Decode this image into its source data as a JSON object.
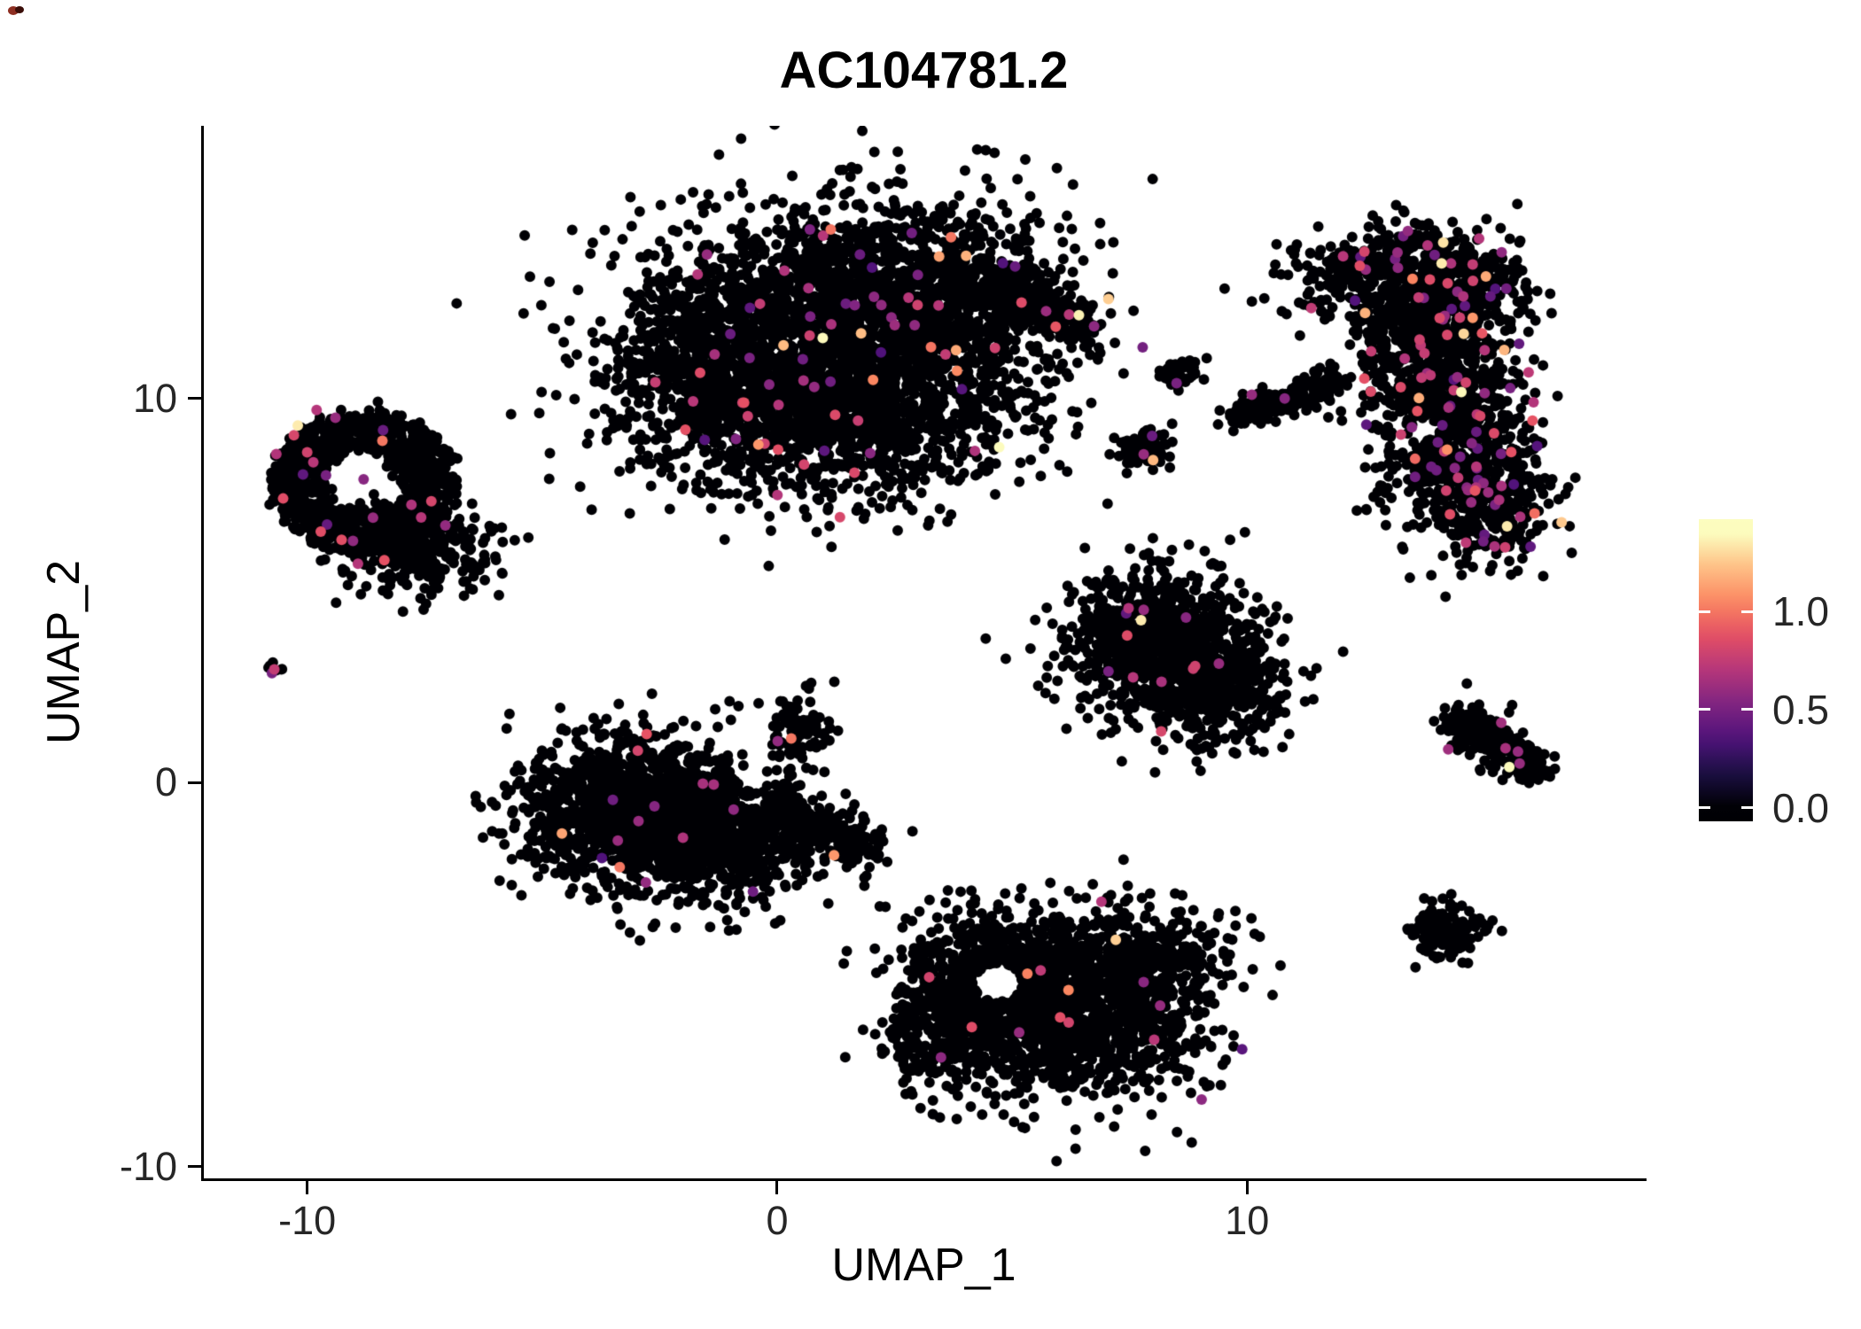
{
  "chart_data": {
    "type": "scatter",
    "title": "AC104781.2",
    "xlabel": "UMAP_1",
    "ylabel": "UMAP_2",
    "xlim": [
      -12.2,
      18.5
    ],
    "ylim": [
      -10.3,
      17.1
    ],
    "x_ticks": [
      -10,
      0,
      10
    ],
    "y_ticks": [
      10,
      0,
      -10
    ],
    "grid": false,
    "legend_position": "right",
    "point_radius_px": 6,
    "seed": 1234,
    "colorbar": {
      "tick_labels": [
        "1.0",
        "0.5",
        "0.0"
      ],
      "tick_values": [
        1.0,
        0.5,
        0.0
      ],
      "domain": [
        0,
        1.4
      ],
      "colormap": "magma",
      "colormap_stops": [
        [
          0.0,
          "#000004"
        ],
        [
          0.13,
          "#1c1044"
        ],
        [
          0.25,
          "#4f127b"
        ],
        [
          0.38,
          "#812581"
        ],
        [
          0.5,
          "#b5367a"
        ],
        [
          0.63,
          "#e55064"
        ],
        [
          0.75,
          "#fb8761"
        ],
        [
          0.88,
          "#fec287"
        ],
        [
          1.0,
          "#fcfdbf"
        ]
      ]
    },
    "clusters": [
      {
        "name": "top-center-lobe-a",
        "type": "gauss",
        "cx": 0.6,
        "cy": 11.6,
        "sx": 2.0,
        "sy": 1.7,
        "n": 1600,
        "high_frac": 0.022
      },
      {
        "name": "top-center-lobe-b",
        "type": "gauss",
        "cx": 3.0,
        "cy": 12.6,
        "sx": 1.6,
        "sy": 1.3,
        "n": 1100,
        "high_frac": 0.022
      },
      {
        "name": "top-center-lobe-c",
        "type": "gauss",
        "cx": 1.6,
        "cy": 9.6,
        "sx": 1.9,
        "sy": 1.1,
        "n": 900,
        "high_frac": 0.018
      },
      {
        "name": "top-center-lobe-d",
        "type": "gauss",
        "cx": -1.3,
        "cy": 10.8,
        "sx": 1.0,
        "sy": 1.4,
        "n": 520,
        "high_frac": 0.018
      },
      {
        "name": "top-center-tail",
        "type": "line",
        "x1": 4.0,
        "y1": 13.1,
        "x2": 6.7,
        "y2": 11.9,
        "w": 0.28,
        "n": 260,
        "high_frac": 0.02
      },
      {
        "name": "left-ring",
        "type": "ring",
        "cx": -8.8,
        "cy": 7.8,
        "r_inner": 0.85,
        "r_outer": 2.0,
        "n": 1000,
        "high_frac": 0.012
      },
      {
        "name": "left-ring-lobe",
        "type": "gauss",
        "cx": -7.7,
        "cy": 6.1,
        "sx": 0.85,
        "sy": 0.6,
        "n": 320,
        "high_frac": 0.006
      },
      {
        "name": "far-left-tiny",
        "type": "gauss",
        "cx": -10.7,
        "cy": 2.9,
        "sx": 0.12,
        "sy": 0.1,
        "n": 7,
        "high_frac": 0
      },
      {
        "name": "center-left-lobe-a",
        "type": "gauss",
        "cx": -3.3,
        "cy": -0.6,
        "sx": 1.2,
        "sy": 1.0,
        "n": 1000,
        "high_frac": 0.006
      },
      {
        "name": "center-left-lobe-b",
        "type": "gauss",
        "cx": -1.3,
        "cy": -1.3,
        "sx": 1.2,
        "sy": 0.9,
        "n": 800,
        "high_frac": 0.006
      },
      {
        "name": "center-left-tail",
        "type": "line",
        "x1": 0.0,
        "y1": -0.9,
        "x2": 1.9,
        "y2": -1.8,
        "w": 0.35,
        "n": 220,
        "high_frac": 0.005
      },
      {
        "name": "center-left-spur",
        "type": "gauss",
        "cx": 0.45,
        "cy": 1.4,
        "sx": 0.35,
        "sy": 0.45,
        "n": 90,
        "high_frac": 0.01
      },
      {
        "name": "bottom-center-lobe-a",
        "type": "gauss",
        "cx": 4.7,
        "cy": -5.0,
        "sx": 1.0,
        "sy": 0.85,
        "n": 650,
        "high_frac": 0.006
      },
      {
        "name": "bottom-center-lobe-b",
        "type": "gauss",
        "cx": 6.5,
        "cy": -6.4,
        "sx": 1.4,
        "sy": 0.95,
        "n": 850,
        "high_frac": 0.007
      },
      {
        "name": "bottom-center-lobe-c",
        "type": "gauss",
        "cx": 7.5,
        "cy": -4.6,
        "sx": 1.0,
        "sy": 0.75,
        "n": 500,
        "high_frac": 0.008
      },
      {
        "name": "bottom-center-lobe-d",
        "type": "gauss",
        "cx": 3.6,
        "cy": -6.5,
        "sx": 0.7,
        "sy": 0.8,
        "n": 300,
        "high_frac": 0.005
      },
      {
        "name": "mid-right-triangle-a",
        "type": "gauss",
        "cx": 8.2,
        "cy": 3.6,
        "sx": 1.05,
        "sy": 0.95,
        "n": 900,
        "high_frac": 0.008
      },
      {
        "name": "mid-right-triangle-b",
        "type": "gauss",
        "cx": 9.3,
        "cy": 2.4,
        "sx": 0.8,
        "sy": 0.7,
        "n": 350,
        "high_frac": 0.008
      },
      {
        "name": "right-crescent-a",
        "type": "gauss",
        "cx": 13.0,
        "cy": 13.2,
        "sx": 1.0,
        "sy": 0.65,
        "n": 400,
        "high_frac": 0.05
      },
      {
        "name": "right-crescent-b",
        "type": "gauss",
        "cx": 14.5,
        "cy": 12.9,
        "sx": 0.8,
        "sy": 0.7,
        "n": 350,
        "high_frac": 0.05
      },
      {
        "name": "right-crescent-c",
        "type": "gauss",
        "cx": 13.9,
        "cy": 10.9,
        "sx": 0.75,
        "sy": 1.0,
        "n": 500,
        "high_frac": 0.06
      },
      {
        "name": "right-crescent-d",
        "type": "gauss",
        "cx": 14.5,
        "cy": 8.9,
        "sx": 0.85,
        "sy": 1.1,
        "n": 550,
        "high_frac": 0.07
      },
      {
        "name": "right-crescent-e",
        "type": "gauss",
        "cx": 15.1,
        "cy": 7.2,
        "sx": 0.7,
        "sy": 0.8,
        "n": 300,
        "high_frac": 0.06
      },
      {
        "name": "small-top-dot",
        "type": "gauss",
        "cx": 8.5,
        "cy": 10.7,
        "sx": 0.22,
        "sy": 0.2,
        "n": 45,
        "high_frac": 0
      },
      {
        "name": "small-top-streak",
        "type": "line",
        "x1": 9.7,
        "y1": 9.5,
        "x2": 11.9,
        "y2": 10.5,
        "w": 0.2,
        "n": 160,
        "high_frac": 0.015
      },
      {
        "name": "small-orange-cluster",
        "type": "gauss",
        "cx": 7.8,
        "cy": 8.7,
        "sx": 0.3,
        "sy": 0.25,
        "n": 70,
        "high_frac": 0.02
      },
      {
        "name": "right-small-streak",
        "type": "line",
        "x1": 14.4,
        "y1": 1.7,
        "x2": 16.3,
        "y2": 0.3,
        "w": 0.28,
        "n": 240,
        "high_frac": 0.008
      },
      {
        "name": "bottom-right-dot",
        "type": "gauss",
        "cx": 14.2,
        "cy": -3.9,
        "sx": 0.4,
        "sy": 0.42,
        "n": 150,
        "high_frac": 0
      }
    ],
    "special_points": [
      {
        "x": -10.2,
        "y": 9.3,
        "v": 1.35
      },
      {
        "x": -9.8,
        "y": 9.7,
        "v": 0.7
      },
      {
        "x": -9.4,
        "y": 9.5,
        "v": 0.6
      },
      {
        "x": -8.4,
        "y": 8.9,
        "v": 1.0
      },
      {
        "x": -10.0,
        "y": 8.6,
        "v": 0.8
      },
      {
        "x": -9.6,
        "y": 8.0,
        "v": 0.5
      },
      {
        "x": -8.6,
        "y": 6.9,
        "v": 0.6
      },
      {
        "x": -8.8,
        "y": 7.9,
        "v": 0.55
      },
      {
        "x": -10.7,
        "y": 2.95,
        "v": 0.75
      },
      {
        "x": -10.75,
        "y": 2.85,
        "v": 0.5
      },
      {
        "x": -0.4,
        "y": 8.8,
        "v": 1.1
      },
      {
        "x": 3.7,
        "y": 14.2,
        "v": 1.0
      },
      {
        "x": 5.2,
        "y": 12.5,
        "v": 0.85
      },
      {
        "x": 0.3,
        "y": 1.15,
        "v": 1.0
      },
      {
        "x": -3.35,
        "y": -2.2,
        "v": 1.0
      },
      {
        "x": -2.95,
        "y": -1.0,
        "v": 0.6
      },
      {
        "x": -1.35,
        "y": -0.05,
        "v": 0.65
      },
      {
        "x": 6.2,
        "y": -5.4,
        "v": 1.05
      },
      {
        "x": 6.9,
        "y": -3.1,
        "v": 0.7
      },
      {
        "x": 8.15,
        "y": -5.8,
        "v": 0.6
      },
      {
        "x": 5.15,
        "y": -6.5,
        "v": 0.6
      },
      {
        "x": 7.8,
        "y": 4.5,
        "v": 0.6
      },
      {
        "x": 8.7,
        "y": 4.3,
        "v": 0.55
      },
      {
        "x": 9.4,
        "y": 3.1,
        "v": 0.6
      },
      {
        "x": 7.05,
        "y": 2.9,
        "v": 0.5
      },
      {
        "x": 8.0,
        "y": 8.4,
        "v": 1.2
      },
      {
        "x": 7.8,
        "y": 8.55,
        "v": 0.6
      },
      {
        "x": 8.5,
        "y": 10.4,
        "v": 0.5
      },
      {
        "x": 10.1,
        "y": 10.1,
        "v": 0.6
      },
      {
        "x": 10.8,
        "y": 10.0,
        "v": 0.55
      },
      {
        "x": 14.8,
        "y": 12.1,
        "v": 1.1
      },
      {
        "x": 15.0,
        "y": 11.7,
        "v": 0.9
      },
      {
        "x": 15.5,
        "y": 0.9,
        "v": 0.65
      },
      {
        "x": 15.8,
        "y": 0.5,
        "v": 0.6
      }
    ],
    "holes": [
      {
        "x": 4.7,
        "y": -5.2,
        "r": 0.5
      },
      {
        "x": 13.8,
        "y": 9.2,
        "r": 0.28
      },
      {
        "x": -0.5,
        "y": 0.1,
        "r": 0.32
      }
    ]
  }
}
